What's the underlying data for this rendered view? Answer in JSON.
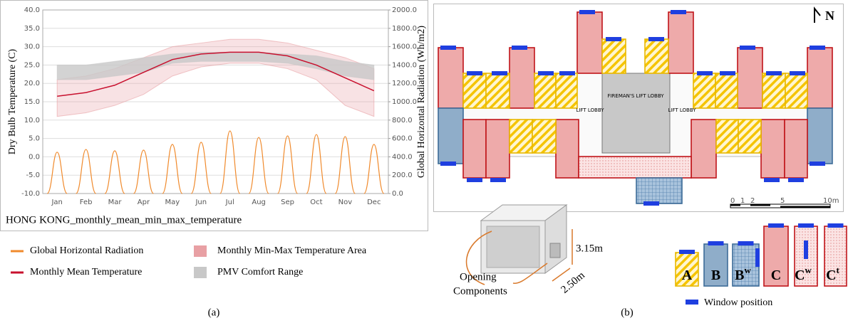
{
  "chart_data": {
    "type": "line",
    "title": "HONG KONG_monthly_mean_min_max_temperature",
    "y_label": "Dry Bulb Temperature (C)",
    "y2_label": "Global Horizontal Radiation (Wh/m2)",
    "categories": [
      "Jan",
      "Feb",
      "Mar",
      "Apr",
      "May",
      "Jun",
      "Jul",
      "Aug",
      "Sep",
      "Oct",
      "Nov",
      "Dec"
    ],
    "ylim": [
      -10,
      40
    ],
    "yticks": [
      {
        "value": -10,
        "label": "-10.0"
      },
      {
        "value": -5,
        "label": "-5.0"
      },
      {
        "value": 0,
        "label": "0.0"
      },
      {
        "value": 5,
        "label": "5.0"
      },
      {
        "value": 10,
        "label": "10.0"
      },
      {
        "value": 15,
        "label": "15.0"
      },
      {
        "value": 20,
        "label": "20.0"
      },
      {
        "value": 25,
        "label": "25.0"
      },
      {
        "value": 30,
        "label": "30.0"
      },
      {
        "value": 35,
        "label": "35.0"
      },
      {
        "value": 40,
        "label": "40.0"
      }
    ],
    "y2lim": [
      0,
      2000
    ],
    "y2ticks": [
      {
        "value": 0,
        "label": "0.0"
      },
      {
        "value": 200,
        "label": "200.0"
      },
      {
        "value": 400,
        "label": "400.0"
      },
      {
        "value": 600,
        "label": "600.0"
      },
      {
        "value": 800,
        "label": "800.0"
      },
      {
        "value": 1000,
        "label": "1000.0"
      },
      {
        "value": 1200,
        "label": "1200.0"
      },
      {
        "value": 1400,
        "label": "1400.0"
      },
      {
        "value": 1600,
        "label": "1600.0"
      },
      {
        "value": 1800,
        "label": "1800.0"
      },
      {
        "value": 2000,
        "label": "2000.0"
      }
    ],
    "grid": true,
    "series": [
      {
        "name": "Global Horizontal Radiation",
        "color": "#f08a2c",
        "axis": "y2",
        "values": [
          450,
          480,
          465,
          473,
          535,
          558,
          682,
          612,
          628,
          643,
          620,
          535
        ]
      },
      {
        "name": "Monthly Mean Temperature",
        "color": "#c8102e",
        "values": [
          16.5,
          17.5,
          19.5,
          23,
          26.5,
          28,
          28.5,
          28.5,
          27.5,
          25,
          21.5,
          18
        ]
      },
      {
        "name": "Monthly Min-Max Temperature Area",
        "color": "#e8a0a4",
        "low": [
          11,
          12,
          14,
          17,
          22,
          24.5,
          25.5,
          25.5,
          24,
          21,
          14,
          11
        ],
        "high": [
          21,
          22,
          24,
          27,
          30,
          31,
          32,
          32,
          31,
          29,
          27,
          24
        ]
      },
      {
        "name": "PMV Comfort Range",
        "color": "#c8c8c8",
        "low": [
          21,
          21,
          22,
          23,
          25.5,
          26,
          26,
          26,
          25.5,
          24,
          22,
          21
        ],
        "high": [
          25,
          25,
          26,
          27,
          28,
          28.5,
          28.5,
          28.5,
          28,
          27.5,
          26,
          25
        ]
      }
    ]
  },
  "captions": {
    "a": "(a)",
    "b": "(b)"
  },
  "plan": {
    "north": "N",
    "fireman_lobby": "FIREMAN'S LIFT LOBBY",
    "lift_lobby_left": "LIFT LOBBY",
    "lift_lobby_right": "LIFT LOBBY",
    "scale": [
      "0",
      "1",
      "2",
      "5",
      "10m"
    ]
  },
  "module": {
    "height": "3.15m",
    "depth": "2.50m",
    "opening": [
      "Opening",
      "Components"
    ]
  },
  "types": [
    {
      "base": "A"
    },
    {
      "base": "B"
    },
    {
      "base": "B",
      "sup": "w"
    },
    {
      "base": "C"
    },
    {
      "base": "C",
      "sup": "w"
    },
    {
      "base": "C",
      "sup": "t"
    }
  ],
  "window_legend": "Window position"
}
